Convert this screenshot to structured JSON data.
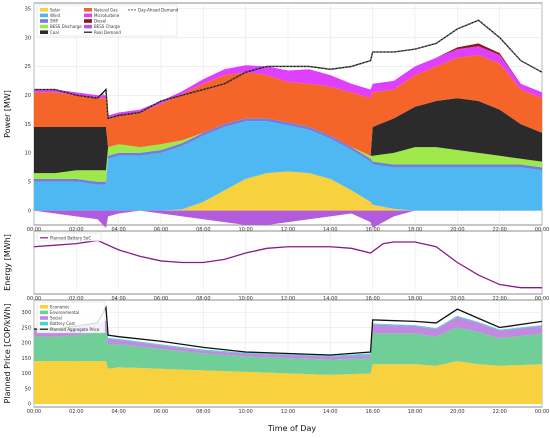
{
  "xlabel": "Time of Day",
  "x_ticks": [
    "00:00",
    "02:00",
    "04:00",
    "06:00",
    "08:00",
    "10:00",
    "12:00",
    "14:00",
    "16:00",
    "18:00",
    "20:00",
    "22:00",
    "00:00"
  ],
  "chart_data": [
    {
      "type": "area",
      "ylabel": "Power [MW]",
      "ylim": [
        -2.5,
        36
      ],
      "yticks": [
        0,
        5,
        10,
        15,
        20,
        25,
        30,
        35
      ],
      "grid": true,
      "legend_placement": "top-left",
      "x_hours": [
        0,
        1,
        2,
        3,
        3.4,
        3.5,
        4,
        5,
        6,
        7,
        8,
        9,
        10,
        11,
        12,
        13,
        14,
        15,
        15.9,
        16,
        17,
        18,
        19,
        20,
        21,
        22,
        23,
        24
      ],
      "series": [
        {
          "name": "Solar",
          "color": "#f7d23e",
          "values": [
            0,
            0,
            0,
            0,
            0,
            0,
            0,
            0,
            0,
            0.2,
            1.5,
            3.5,
            5.5,
            6.5,
            6.8,
            6.5,
            5.5,
            3.5,
            1.5,
            1,
            0.3,
            0,
            0,
            0,
            0,
            0,
            0,
            0
          ]
        },
        {
          "name": "Wind",
          "color": "#4fb8f2",
          "values": [
            5,
            5,
            5,
            4.5,
            4.5,
            9,
            9.5,
            9.5,
            10,
            11,
            11.5,
            11,
            10,
            9,
            8,
            7.5,
            7,
            7,
            7,
            7,
            7.2,
            7.5,
            7.5,
            7.5,
            7.5,
            7.5,
            7.5,
            7
          ]
        },
        {
          "name": "SHP",
          "color": "#6f7fe0",
          "values": [
            0.5,
            0.5,
            0.5,
            0.5,
            0.5,
            0.5,
            0.5,
            0.5,
            0.5,
            0.5,
            0.5,
            0.5,
            0.5,
            0.5,
            0.5,
            0.5,
            0.5,
            0.5,
            0.5,
            0.5,
            0.5,
            0.5,
            0.5,
            0.5,
            0.5,
            0.5,
            0.5,
            0.5
          ]
        },
        {
          "name": "BESS Discharge",
          "color": "#9ee84a",
          "values": [
            1,
            1,
            1.5,
            2,
            2,
            1.5,
            1.5,
            1,
            1,
            0.5,
            0,
            0,
            0,
            0,
            0,
            0,
            0,
            0,
            0.5,
            1,
            2,
            3,
            3,
            2.5,
            2,
            1.5,
            1,
            1
          ]
        },
        {
          "name": "Coal",
          "color": "#2b2b2b",
          "values": [
            8,
            8,
            7.5,
            7.5,
            7.5,
            0,
            0,
            0,
            0,
            0,
            0,
            0,
            0,
            0,
            0,
            0,
            0,
            0,
            0,
            5,
            6,
            7,
            8,
            9,
            9,
            8,
            6,
            5
          ]
        },
        {
          "name": "Natural Gas",
          "color": "#f5652a",
          "values": [
            6,
            6,
            5.5,
            5,
            5,
            5,
            5,
            6,
            7,
            8,
            8.5,
            8.5,
            8,
            7.5,
            7,
            7.5,
            8.5,
            9.5,
            10,
            6,
            5,
            5.5,
            6,
            7,
            8,
            8,
            6,
            6
          ]
        },
        {
          "name": "Microturbine",
          "color": "#e040fb",
          "values": [
            0.5,
            0.5,
            0.5,
            0.5,
            0.5,
            0.5,
            0.5,
            0.5,
            0.5,
            0.5,
            0.8,
            1,
            1.2,
            1.5,
            2,
            2.5,
            2,
            1.5,
            1.5,
            1.5,
            1.5,
            1.5,
            1.5,
            1.5,
            1.5,
            1.5,
            1,
            1
          ]
        },
        {
          "name": "Diesel",
          "color": "#8b1a1a",
          "values": [
            0,
            0,
            0,
            0,
            0,
            0,
            0,
            0,
            0,
            0,
            0,
            0,
            0,
            0,
            0,
            0,
            0,
            0,
            0,
            0,
            0,
            0,
            0,
            0.3,
            0.5,
            0.3,
            0,
            0
          ]
        },
        {
          "name": "BESS Charge",
          "color": "#b25bdc",
          "values": [
            0,
            -0.5,
            -1,
            -1.5,
            -3,
            -1,
            -0.5,
            0,
            -0.5,
            -1,
            -1.5,
            -2,
            -2.5,
            -2.5,
            -2,
            -1.5,
            -1,
            -0.5,
            -2,
            -3,
            -1,
            0,
            0,
            0,
            0,
            0,
            0,
            0
          ]
        },
        {
          "name": "Real Demand",
          "color": "#111111",
          "values": [
            21,
            21,
            20,
            19.5,
            21,
            16,
            16.5,
            17,
            19,
            20,
            21,
            22,
            24,
            25,
            25,
            25,
            24.5,
            25,
            26,
            27.5,
            27.5,
            28,
            29,
            31.5,
            33,
            30,
            26,
            24
          ]
        },
        {
          "name": "Day-Ahead Demand",
          "color": "#777777",
          "values": [
            21,
            21,
            20,
            19.5,
            20.5,
            16,
            16.5,
            17,
            19,
            20,
            21,
            22,
            24,
            25,
            25,
            25,
            24.5,
            25,
            26,
            27.5,
            27.5,
            28,
            29,
            31.5,
            33,
            30,
            26,
            24
          ]
        }
      ]
    },
    {
      "type": "line",
      "ylabel": "Energy [MWh]",
      "ylim": [
        0,
        20
      ],
      "grid": true,
      "legend_placement": "top-left",
      "x_hours": [
        0,
        1,
        2,
        3,
        4,
        5,
        6,
        7,
        8,
        9,
        10,
        11,
        12,
        13,
        14,
        15,
        15.9,
        16.5,
        17,
        18,
        19,
        20,
        21,
        22,
        23,
        24
      ],
      "series": [
        {
          "name": "Planned Battery SoC",
          "color": "#8a1a8a",
          "values": [
            15,
            15.5,
            16,
            17,
            14,
            12,
            10.5,
            10,
            10,
            11,
            13,
            14.5,
            15,
            15,
            15,
            14.5,
            13,
            16,
            16.5,
            16.5,
            15,
            10,
            6,
            3,
            2,
            2
          ]
        }
      ]
    },
    {
      "type": "area",
      "ylabel": "Planned Price [COP/kWh]",
      "ylim": [
        -10,
        340
      ],
      "yticks": [
        0,
        50,
        100,
        150,
        200,
        250,
        300
      ],
      "grid": true,
      "legend_placement": "top-left",
      "x_hours": [
        0,
        1,
        2,
        3,
        3.4,
        3.5,
        4,
        6,
        8,
        10,
        12,
        14,
        15.9,
        16,
        18,
        19,
        20,
        21,
        22,
        24
      ],
      "series": [
        {
          "name": "Economic",
          "color": "#f7d23e",
          "values": [
            140,
            140,
            140,
            140,
            140,
            115,
            120,
            115,
            110,
            105,
            100,
            95,
            100,
            130,
            130,
            125,
            140,
            130,
            125,
            130
          ]
        },
        {
          "name": "Environmental",
          "color": "#6fcf97",
          "values": [
            80,
            80,
            85,
            95,
            100,
            80,
            75,
            65,
            55,
            50,
            50,
            50,
            50,
            100,
            100,
            95,
            110,
            105,
            90,
            100
          ]
        },
        {
          "name": "Social",
          "color": "#c08ae0",
          "values": [
            20,
            20,
            25,
            25,
            30,
            18,
            15,
            12,
            10,
            10,
            10,
            10,
            10,
            30,
            25,
            25,
            35,
            30,
            25,
            25
          ]
        },
        {
          "name": "Battery Cost",
          "color": "#4dd0e1",
          "values": [
            3,
            3,
            3,
            3,
            3,
            3,
            3,
            3,
            3,
            3,
            3,
            3,
            5,
            3,
            3,
            3,
            3,
            3,
            3,
            3
          ]
        },
        {
          "name": "Planned Aggregate Price",
          "color": "#111111",
          "values": [
            245,
            245,
            255,
            265,
            315,
            225,
            220,
            205,
            185,
            170,
            165,
            160,
            170,
            275,
            270,
            265,
            310,
            280,
            250,
            270
          ]
        }
      ]
    }
  ]
}
